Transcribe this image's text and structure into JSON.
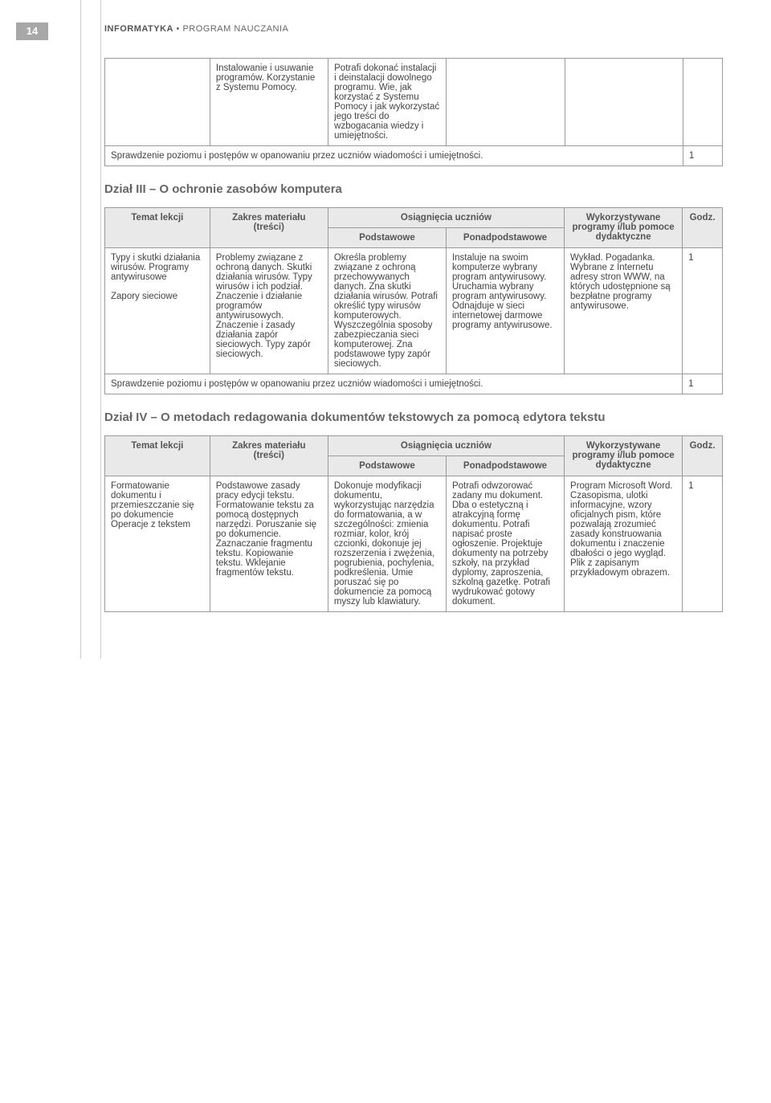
{
  "page_number": "14",
  "header": {
    "bold": "INFORMATYKA",
    "sep": " • ",
    "rest": "PROGRAM NAUCZANIA"
  },
  "colors": {
    "page_num_bg": "#a8a8a8",
    "header_bg": "#e9e9e9",
    "border": "#999999",
    "text": "#444444",
    "title": "#666666"
  },
  "table1": {
    "rows": [
      {
        "c1": "",
        "c2": "Instalowanie i usuwanie programów. Korzystanie z Systemu Pomocy.",
        "c3": "Potrafi dokonać instalacji i deinstalacji dowolnego programu. Wie, jak korzystać z Systemu Pomocy i jak wykorzystać jego treści do wzbogacania wiedzy i umiejętności.",
        "c4": "",
        "c5": "",
        "c6": ""
      }
    ],
    "check_row": {
      "text": "Sprawdzenie poziomu i postępów w opanowaniu przez uczniów wiadomości i umiejętności.",
      "godz": "1"
    }
  },
  "section3_title": "Dział III – O ochronie zasobów komputera",
  "headers": {
    "temat": "Temat lekcji",
    "zakres": "Zakres materiału (treści)",
    "osiag": "Osiągnięcia uczniów",
    "podst": "Podstawowe",
    "ponad": "Ponadpodstawowe",
    "wyk": "Wykorzystywane programy i/lub pomoce dydaktyczne",
    "godz": "Godz."
  },
  "table3": {
    "row": {
      "temat": "Typy i skutki działania wirusów. Programy antywirusowe\n\nZapory sieciowe",
      "zakres": "Problemy związane z ochroną danych. Skutki działania wirusów. Typy wirusów i ich podział. Znaczenie i działanie programów antywirusowych. Znaczenie i zasady działania zapór sieciowych. Typy zapór sieciowych.",
      "podst": "Określa problemy związane z ochroną przechowywanych danych. Zna skutki działania wirusów. Potrafi określić typy wirusów komputerowych. Wyszczególnia sposoby zabezpieczania sieci komputerowej. Zna podstawowe typy zapór sieciowych.",
      "ponad": "Instaluje na swoim komputerze wybrany program antywirusowy. Uruchamia wybrany program antywirusowy. Odnajduje w sieci internetowej darmowe programy antywirusowe.",
      "wyk": "Wykład. Pogadanka. Wybrane z Internetu adresy stron WWW, na których udostępnione są bezpłatne programy antywirusowe.",
      "godz": "1"
    },
    "check_row": {
      "text": "Sprawdzenie poziomu i postępów w opanowaniu przez uczniów wiadomości i umiejętności.",
      "godz": "1"
    }
  },
  "section4_title": "Dział IV – O metodach redagowania dokumentów tekstowych za pomocą edytora tekstu",
  "table4": {
    "row": {
      "temat": "Formatowanie dokumentu i przemieszczanie się po dokumencie Operacje z tekstem",
      "zakres": "Podstawowe zasady pracy edycji tekstu. Formatowanie tekstu za pomocą dostępnych narzędzi. Poruszanie się po dokumencie. Zaznaczanie fragmentu tekstu. Kopiowanie tekstu. Wklejanie fragmentów tekstu.",
      "podst": "Dokonuje modyfikacji dokumentu, wykorzystując narzędzia do formatowania, a w szczególności: zmienia rozmiar, kolor, krój czcionki, dokonuje jej rozszerzenia i zwężenia, pogrubienia, pochylenia, podkreślenia. Umie poruszać się po dokumencie za pomocą myszy lub klawiatury.",
      "ponad": "Potrafi odwzorować zadany mu dokument. Dba o estetyczną i atrakcyjną formę dokumentu. Potrafi napisać proste ogłoszenie. Projektuje dokumenty na potrzeby szkoły, na przykład dyplomy, zaproszenia, szkolną gazetkę. Potrafi wydrukować gotowy dokument.",
      "wyk": "Program Microsoft Word. Czasopisma, ulotki informacyjne, wzory oficjalnych pism, które pozwalają zrozumieć zasady konstruowania dokumentu i znaczenie dbałości o jego wygląd. Plik z zapisanym przykładowym obrazem.",
      "godz": "1"
    }
  }
}
